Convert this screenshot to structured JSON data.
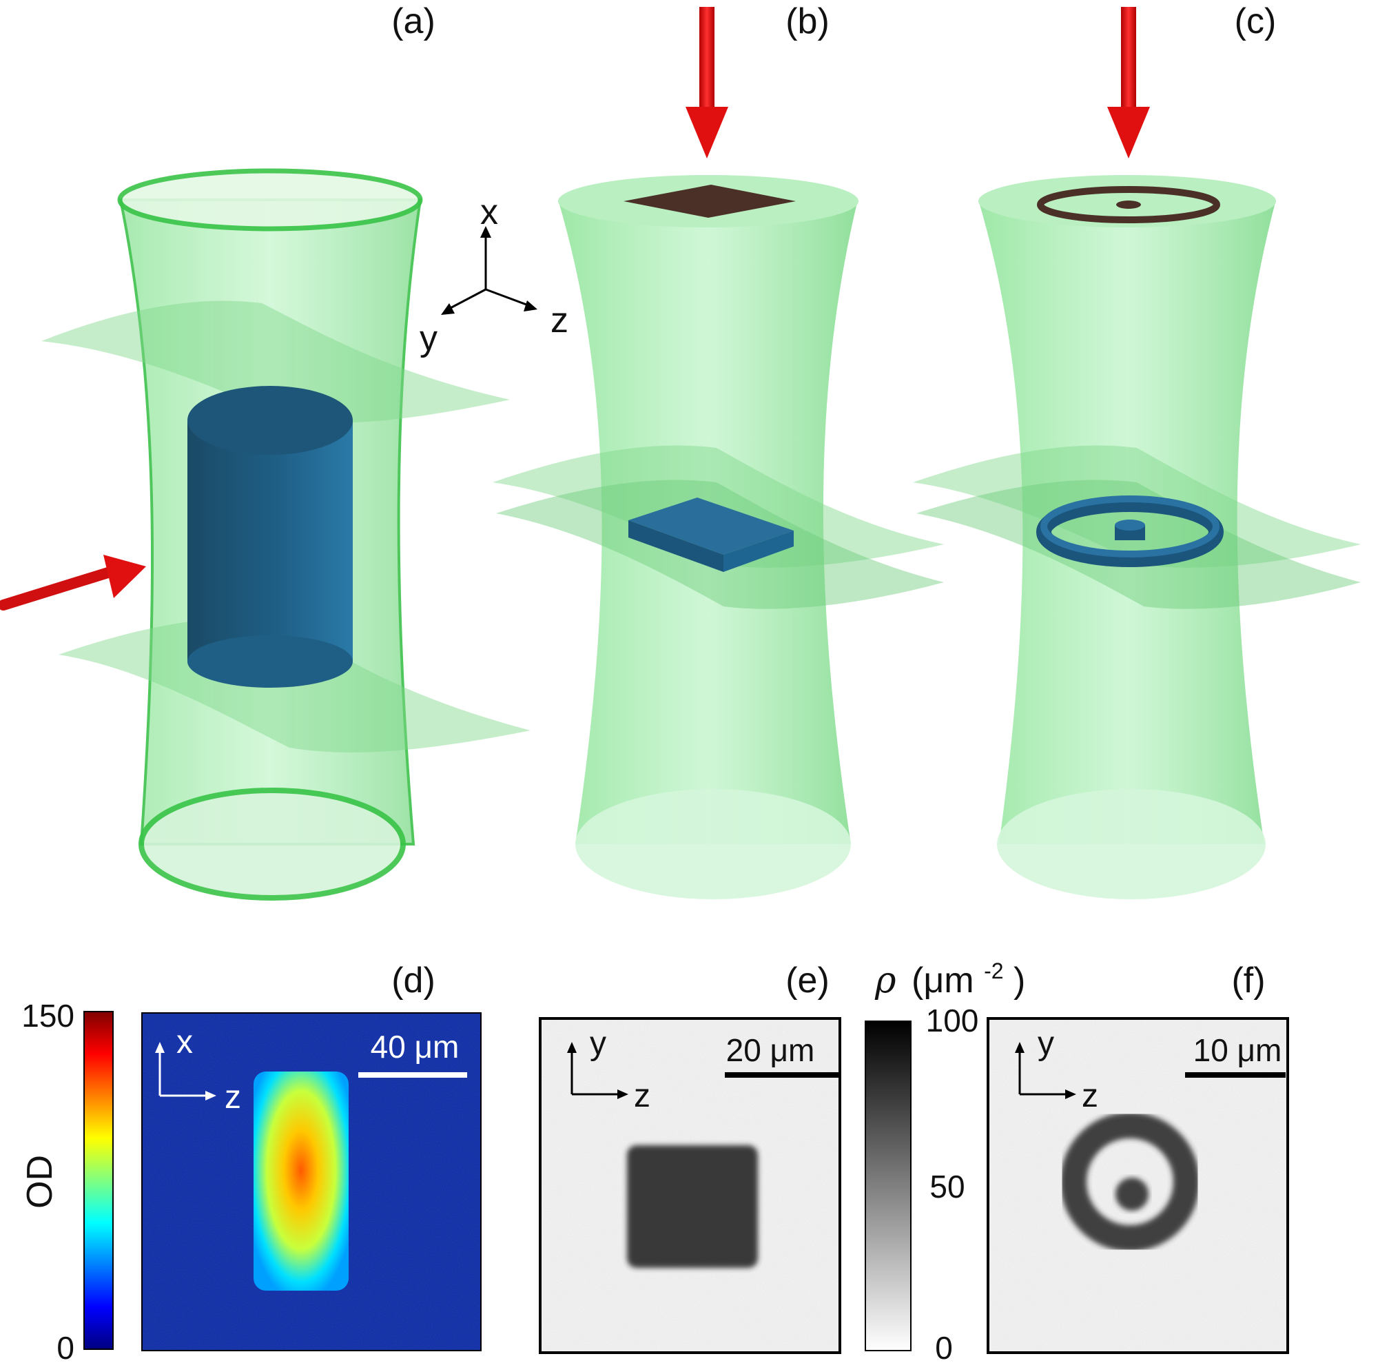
{
  "panels": {
    "a": {
      "label": "(a)"
    },
    "b": {
      "label": "(b)"
    },
    "c": {
      "label": "(c)"
    },
    "d": {
      "label": "(d)",
      "scale_bar": "40 μm",
      "axis_up": "x",
      "axis_right": "z",
      "colorbar": {
        "title": "OD",
        "max": "150",
        "min": "0"
      }
    },
    "e": {
      "label": "(e)",
      "scale_bar": "20 μm",
      "axis_up": "y",
      "axis_right": "z",
      "colorbar": {
        "title_symbol": "ρ",
        "title_unit": "(μm",
        "title_exp": "-2",
        "title_close": ")",
        "max": "100",
        "mid": "50",
        "min": "0"
      }
    },
    "f": {
      "label": "(f)",
      "scale_bar": "10 μm",
      "axis_up": "y",
      "axis_right": "z"
    }
  },
  "axes3d": {
    "x": "x",
    "y": "y",
    "z": "z"
  },
  "colors": {
    "beam_green": "#5fd36a",
    "cloud_blue": "#1f5f86",
    "arrow_red": "#e01010",
    "mask_brown": "#4a3026"
  }
}
